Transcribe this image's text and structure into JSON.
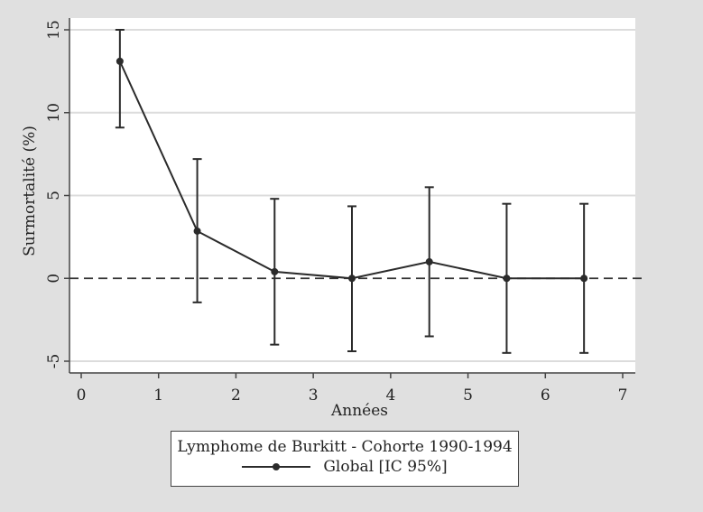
{
  "chart_data": {
    "type": "line",
    "xlabel": "Années",
    "ylabel": "Surmortalité (%)",
    "xlim": [
      0,
      7
    ],
    "ylim": [
      -5,
      15
    ],
    "xticks": [
      "0",
      "1",
      "2",
      "3",
      "4",
      "5",
      "6",
      "7"
    ],
    "yticks": [
      "-5",
      "0",
      "5",
      "10",
      "15"
    ],
    "grid": true,
    "reference_line": {
      "y": 0,
      "style": "dashed"
    },
    "legend": {
      "title": "Lymphome de Burkitt - Cohorte 1990-1994",
      "position": "bottom"
    },
    "series": [
      {
        "name": "Global [IC 95%]",
        "x": [
          0.5,
          1.5,
          2.5,
          3.5,
          4.5,
          5.5,
          6.5
        ],
        "y": [
          13.1,
          2.85,
          0.4,
          0.0,
          1.0,
          0.0,
          0.0
        ],
        "ci_low": [
          9.1,
          -1.45,
          -4.0,
          -4.4,
          -3.5,
          -4.5,
          -4.5
        ],
        "ci_high": [
          15.0,
          7.2,
          4.8,
          4.35,
          5.5,
          4.5,
          4.5
        ],
        "color": "#2b2b2b"
      }
    ]
  }
}
